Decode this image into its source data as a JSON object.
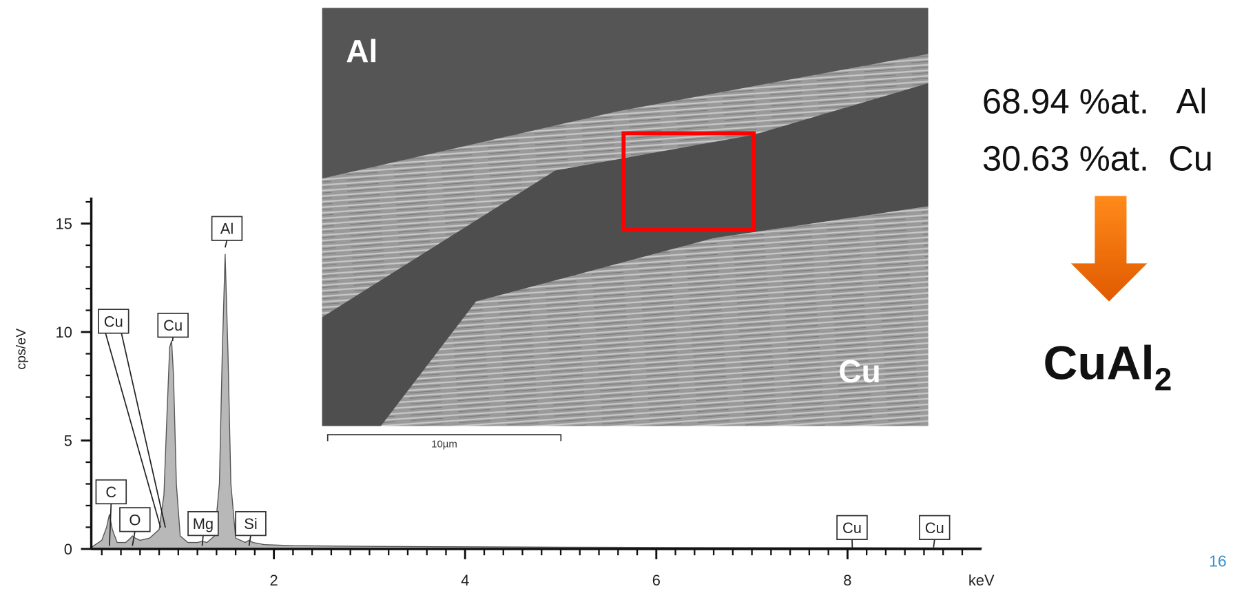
{
  "chart_data": {
    "type": "area",
    "ylabel": "cps/eV",
    "xlabel": "keV",
    "color": "#b8b8b8",
    "line_color": "#555555",
    "x": [
      0.1,
      0.2,
      0.25,
      0.28,
      0.31,
      0.36,
      0.45,
      0.5,
      0.52,
      0.55,
      0.6,
      0.7,
      0.8,
      0.85,
      0.88,
      0.91,
      0.93,
      0.95,
      0.98,
      1.02,
      1.1,
      1.2,
      1.25,
      1.3,
      1.38,
      1.43,
      1.46,
      1.49,
      1.52,
      1.55,
      1.6,
      1.7,
      1.74,
      1.78,
      1.9,
      2.2,
      3,
      4,
      5,
      6,
      7,
      8,
      9,
      9.4
    ],
    "values": [
      0.1,
      0.4,
      1.0,
      1.6,
      0.9,
      0.3,
      0.3,
      0.5,
      0.6,
      0.5,
      0.4,
      0.5,
      0.9,
      2.5,
      6,
      9.3,
      9.6,
      8,
      3,
      0.6,
      0.3,
      0.3,
      0.35,
      0.3,
      0.6,
      3,
      9,
      13.6,
      9,
      3,
      0.5,
      0.3,
      0.4,
      0.3,
      0.2,
      0.15,
      0.12,
      0.1,
      0.08,
      0.07,
      0.06,
      0.06,
      0.05,
      0.05
    ],
    "xlim": [
      0.09,
      9.4
    ],
    "ylim": [
      0,
      16.2
    ],
    "xticks": [
      2,
      4,
      6,
      8
    ],
    "yticks": [
      0,
      5,
      10,
      15
    ],
    "xminorticks": [
      0.2,
      0.4,
      0.6,
      0.8,
      1,
      1.2,
      1.4,
      1.6,
      1.8,
      2.2,
      2.4,
      2.6,
      2.8,
      3,
      3.2,
      3.4,
      3.6,
      3.8,
      4.2,
      4.4,
      4.6,
      4.8,
      5,
      5.2,
      5.4,
      5.6,
      5.8,
      6.2,
      6.4,
      6.6,
      6.8,
      7,
      7.2,
      7.4,
      7.6,
      7.8,
      8.2,
      8.4,
      8.6,
      8.8,
      9,
      9.2
    ],
    "yminorticks": [
      1,
      2,
      3,
      4,
      6,
      7,
      8,
      9,
      11,
      12,
      13,
      14,
      16
    ],
    "peak_labels": [
      {
        "label": "C",
        "x": 0.28
      },
      {
        "label": "O",
        "x": 0.52
      },
      {
        "label": "Cu",
        "x": 0.84
      },
      {
        "label": "Cu",
        "x": 0.94
      },
      {
        "label": "Al",
        "x": 1.49
      },
      {
        "label": "Mg",
        "x": 1.25
      },
      {
        "label": "Si",
        "x": 1.74
      },
      {
        "label": "Cu",
        "x": 8.05
      },
      {
        "label": "Cu",
        "x": 8.9
      }
    ]
  },
  "image": {
    "label_top": "Al",
    "label_bottom": "Cu",
    "scale_bar": "10µm"
  },
  "composition": [
    "68.94 %at.   Al",
    "30.63 %at.  Cu"
  ],
  "formula": {
    "base": "CuAl",
    "subscript": "2"
  },
  "page_number": "16"
}
